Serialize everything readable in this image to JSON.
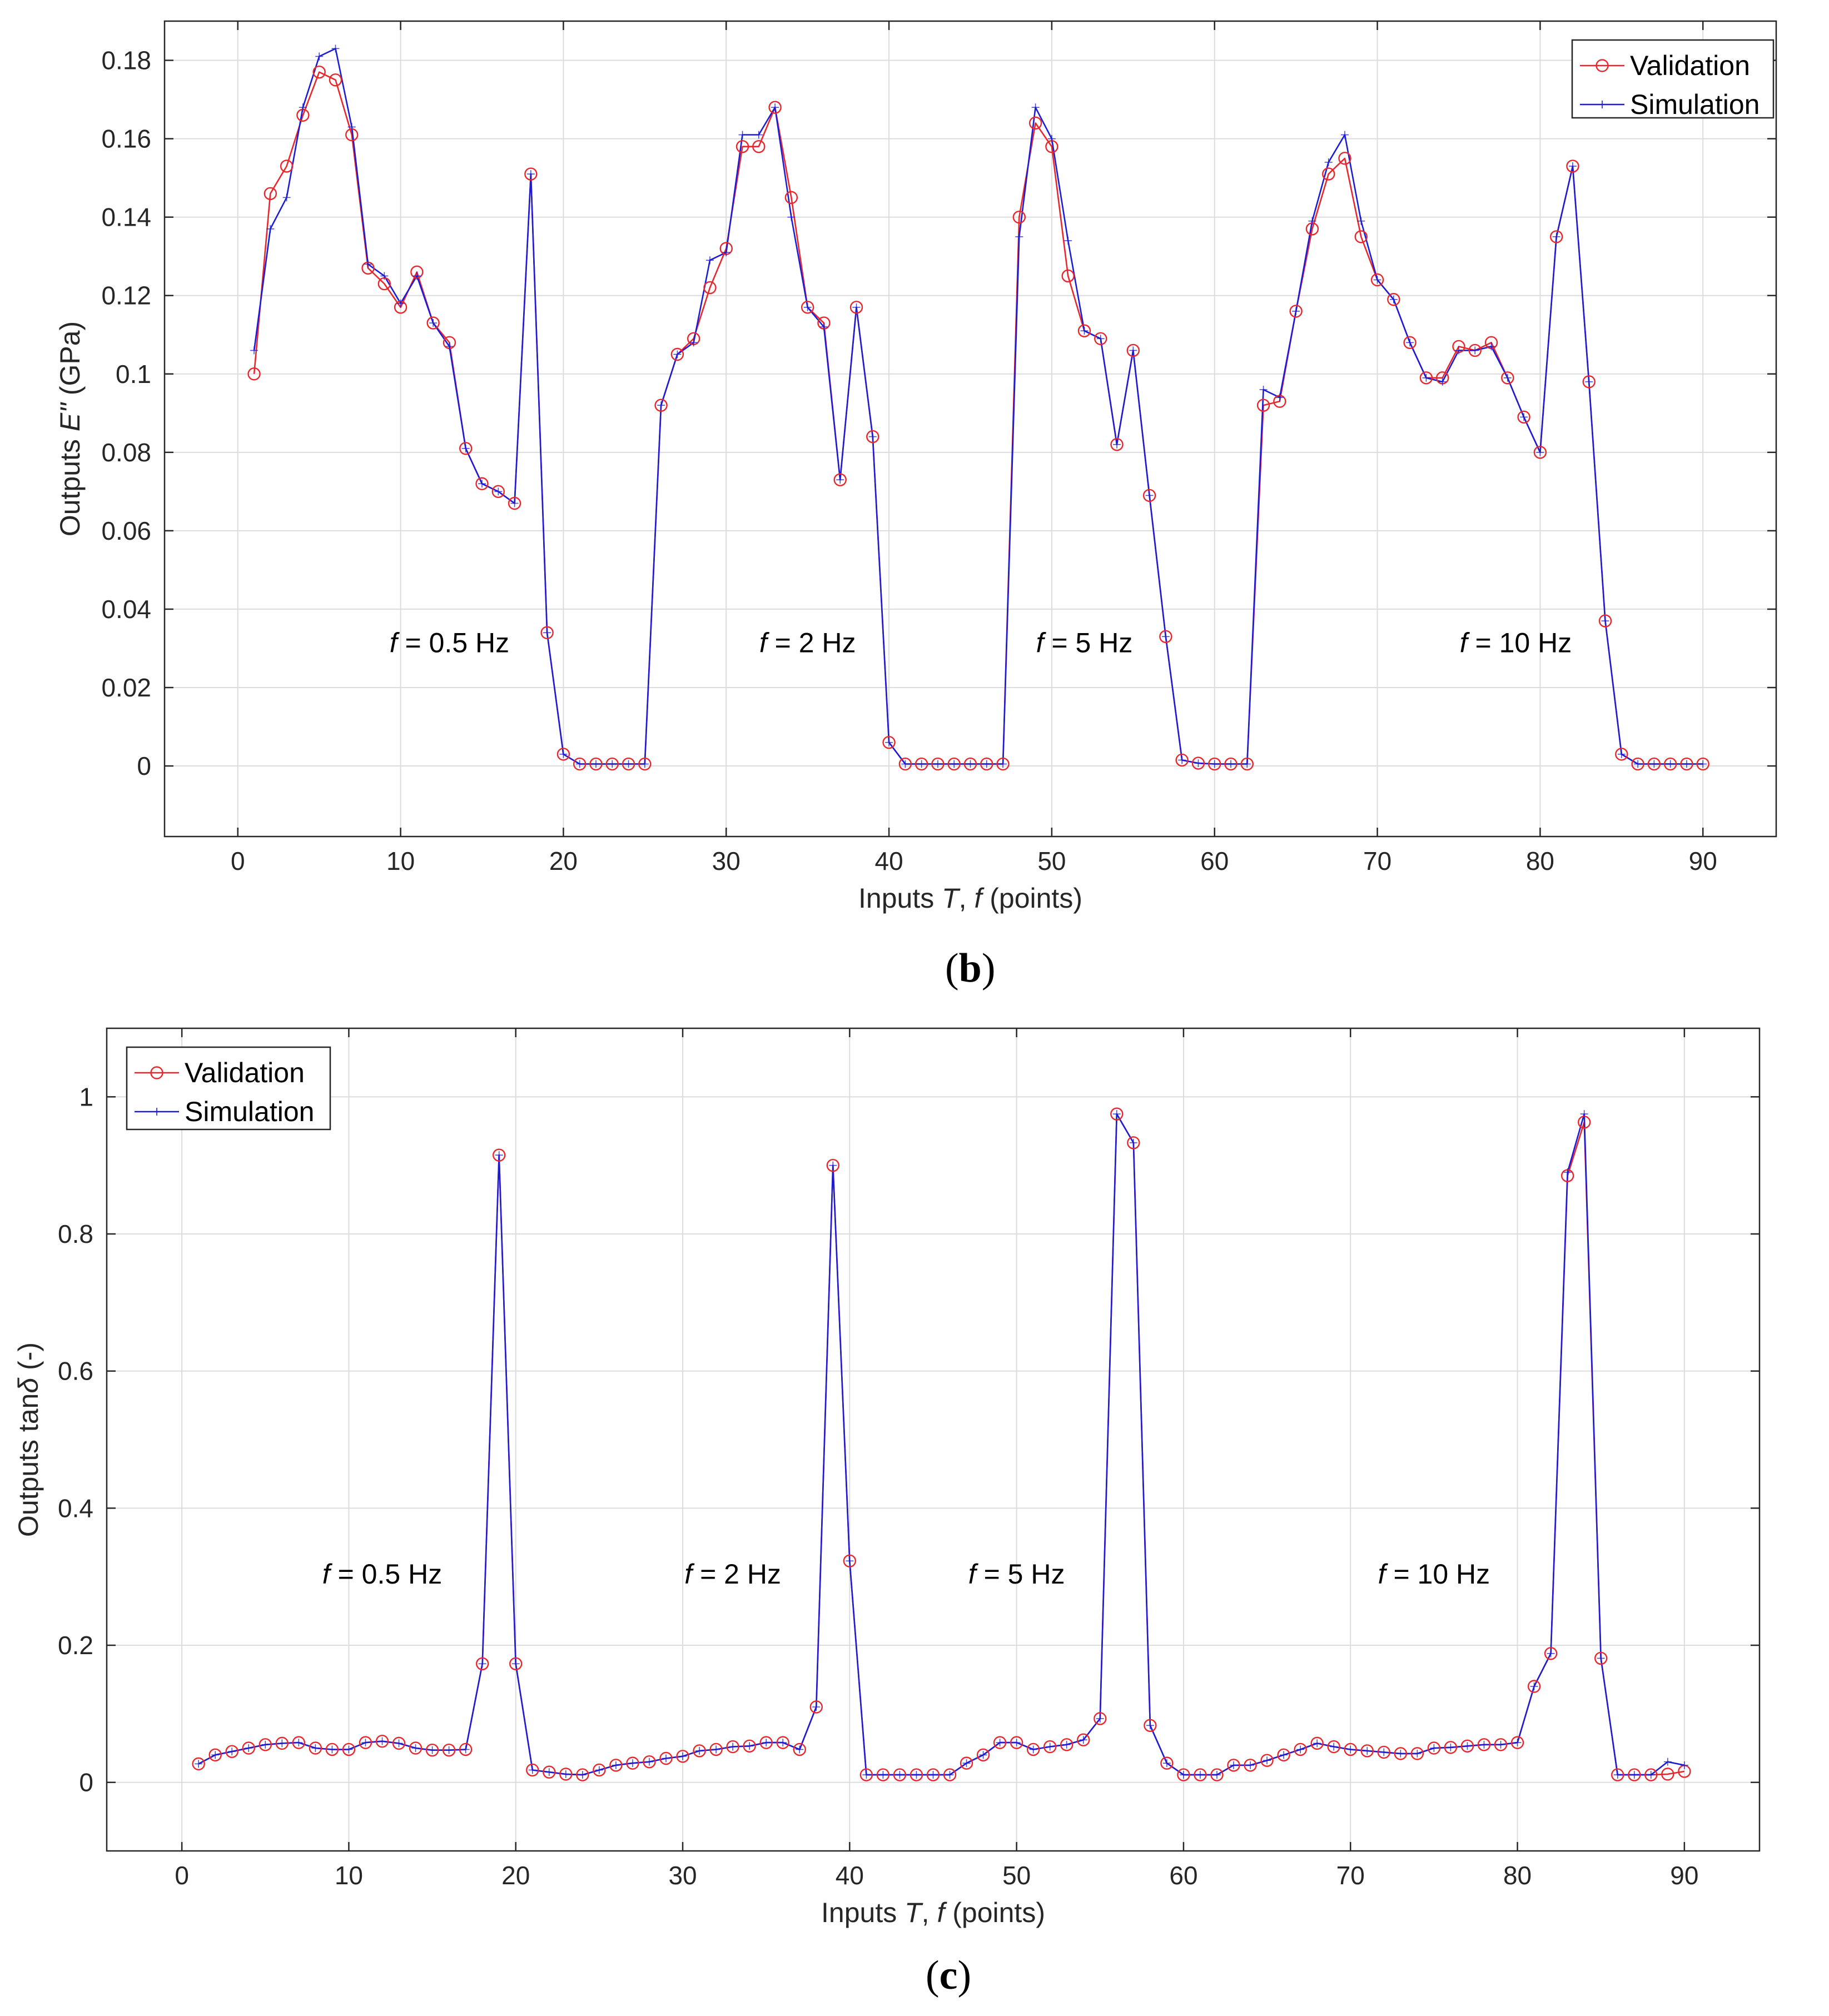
{
  "colors": {
    "validation": "#e8262b",
    "simulation": "#1c1cd6",
    "grid": "#dcdcdc",
    "axis": "#262626"
  },
  "chart_data": [
    {
      "type": "line",
      "panel_label": "b",
      "xlabel_parts": [
        "Inputs ",
        "T",
        ", ",
        "f",
        " (points)"
      ],
      "ylabel_parts": [
        "Outputs ",
        "E\"",
        " (GPa)"
      ],
      "xlim": [
        -4.5,
        94.5
      ],
      "ylim": [
        -0.018,
        0.19
      ],
      "xticks": [
        0,
        10,
        20,
        30,
        40,
        50,
        60,
        70,
        80,
        90
      ],
      "xtick_labels": [
        "0",
        "10",
        "20",
        "30",
        "40",
        "50",
        "60",
        "70",
        "80",
        "90"
      ],
      "yticks": [
        0,
        0.02,
        0.04,
        0.06,
        0.08,
        0.1,
        0.12,
        0.14,
        0.16,
        0.18
      ],
      "ytick_labels": [
        "0",
        "0.02",
        "0.04",
        "0.06",
        "0.08",
        "0.1",
        "0.12",
        "0.14",
        "0.16",
        "0.18"
      ],
      "grid": true,
      "legend_position": "top-right",
      "legend": [
        "Validation",
        "Simulation"
      ],
      "annotations": [
        {
          "italic": "f",
          "text": " = 0.5 Hz",
          "x": 13,
          "y": 0.029
        },
        {
          "italic": "f",
          "text": " = 2 Hz",
          "x": 35,
          "y": 0.029
        },
        {
          "italic": "f",
          "text": " = 5 Hz",
          "x": 52,
          "y": 0.029
        },
        {
          "italic": "f",
          "text": " = 10 Hz",
          "x": 78.5,
          "y": 0.029
        }
      ],
      "series": [
        {
          "name": "Validation",
          "marker": "circle",
          "values": [
            0.1,
            0.146,
            0.153,
            0.166,
            0.177,
            0.175,
            0.161,
            0.127,
            0.123,
            0.117,
            0.126,
            0.113,
            0.108,
            0.081,
            0.072,
            0.07,
            0.067,
            0.151,
            0.034,
            0.003,
            0.0005,
            0.0005,
            0.0005,
            0.0005,
            0.0005,
            0.092,
            0.105,
            0.109,
            0.122,
            0.132,
            0.158,
            0.158,
            0.168,
            0.145,
            0.117,
            0.113,
            0.073,
            0.117,
            0.084,
            0.006,
            0.0005,
            0.0005,
            0.0005,
            0.0005,
            0.0005,
            0.0005,
            0.0005,
            0.14,
            0.164,
            0.158,
            0.125,
            0.111,
            0.109,
            0.082,
            0.106,
            0.069,
            0.033,
            0.0015,
            0.0007,
            0.0005,
            0.0005,
            0.0005,
            0.092,
            0.093,
            0.116,
            0.137,
            0.151,
            0.155,
            0.135,
            0.124,
            0.119,
            0.108,
            0.099,
            0.099,
            0.107,
            0.106,
            0.108,
            0.099,
            0.089,
            0.08,
            0.135,
            0.153,
            0.098,
            0.037,
            0.003,
            0.0005,
            0.0005,
            0.0005,
            0.0005,
            0.0005
          ]
        },
        {
          "name": "Simulation",
          "marker": "plus",
          "values": [
            0.106,
            0.137,
            0.145,
            0.168,
            0.181,
            0.183,
            0.163,
            0.128,
            0.125,
            0.118,
            0.125,
            0.113,
            0.107,
            0.081,
            0.072,
            0.07,
            0.067,
            0.151,
            0.034,
            0.003,
            0.0005,
            0.0005,
            0.0005,
            0.0005,
            0.0005,
            0.092,
            0.105,
            0.108,
            0.129,
            0.131,
            0.161,
            0.161,
            0.168,
            0.14,
            0.117,
            0.112,
            0.073,
            0.117,
            0.084,
            0.006,
            0.0005,
            0.0005,
            0.0005,
            0.0005,
            0.0005,
            0.0005,
            0.0005,
            0.135,
            0.168,
            0.16,
            0.134,
            0.111,
            0.109,
            0.082,
            0.106,
            0.069,
            0.033,
            0.0015,
            0.0007,
            0.0005,
            0.0005,
            0.0005,
            0.096,
            0.094,
            0.116,
            0.139,
            0.154,
            0.161,
            0.139,
            0.124,
            0.119,
            0.108,
            0.099,
            0.098,
            0.106,
            0.106,
            0.107,
            0.099,
            0.089,
            0.08,
            0.135,
            0.153,
            0.098,
            0.037,
            0.003,
            0.0005,
            0.0005,
            0.0005,
            0.0005,
            0.0005
          ]
        }
      ]
    },
    {
      "type": "line",
      "panel_label": "c",
      "xlabel_parts": [
        "Inputs ",
        "T",
        ", ",
        "f",
        " (points)"
      ],
      "ylabel_parts": [
        "Outputs tan",
        "δ",
        " (-)"
      ],
      "xlim": [
        -4.5,
        94.5
      ],
      "ylim": [
        -0.1,
        1.1
      ],
      "xticks": [
        0,
        10,
        20,
        30,
        40,
        50,
        60,
        70,
        80,
        90
      ],
      "xtick_labels": [
        "0",
        "10",
        "20",
        "30",
        "40",
        "50",
        "60",
        "70",
        "80",
        "90"
      ],
      "yticks": [
        0,
        0.2,
        0.4,
        0.6,
        0.8,
        1
      ],
      "ytick_labels": [
        "0",
        "0.2",
        "0.4",
        "0.6",
        "0.8",
        "1"
      ],
      "grid": true,
      "legend_position": "top-left",
      "legend": [
        "Validation",
        "Simulation"
      ],
      "annotations": [
        {
          "italic": "f",
          "text": " = 0.5 Hz",
          "x": 12,
          "y": 0.29
        },
        {
          "italic": "f",
          "text": " = 2 Hz",
          "x": 33,
          "y": 0.29
        },
        {
          "italic": "f",
          "text": " = 5 Hz",
          "x": 50,
          "y": 0.29
        },
        {
          "italic": "f",
          "text": " = 10 Hz",
          "x": 75,
          "y": 0.29
        }
      ],
      "series": [
        {
          "name": "Validation",
          "marker": "circle",
          "values": [
            0.027,
            0.04,
            0.045,
            0.05,
            0.055,
            0.057,
            0.058,
            0.05,
            0.048,
            0.048,
            0.058,
            0.06,
            0.057,
            0.05,
            0.047,
            0.047,
            0.048,
            0.173,
            0.915,
            0.173,
            0.018,
            0.015,
            0.012,
            0.011,
            0.018,
            0.025,
            0.028,
            0.03,
            0.035,
            0.038,
            0.046,
            0.048,
            0.052,
            0.053,
            0.058,
            0.058,
            0.048,
            0.11,
            0.9,
            0.323,
            0.011,
            0.011,
            0.011,
            0.011,
            0.011,
            0.011,
            0.028,
            0.04,
            0.058,
            0.058,
            0.048,
            0.052,
            0.055,
            0.062,
            0.093,
            0.975,
            0.933,
            0.083,
            0.028,
            0.011,
            0.011,
            0.011,
            0.025,
            0.025,
            0.032,
            0.04,
            0.048,
            0.057,
            0.052,
            0.048,
            0.046,
            0.044,
            0.042,
            0.042,
            0.05,
            0.051,
            0.053,
            0.055,
            0.055,
            0.058,
            0.14,
            0.188,
            0.885,
            0.963,
            0.181,
            0.011,
            0.011,
            0.011,
            0.012,
            0.016
          ]
        },
        {
          "name": "Simulation",
          "marker": "plus",
          "values": [
            0.027,
            0.04,
            0.045,
            0.05,
            0.055,
            0.057,
            0.058,
            0.05,
            0.048,
            0.048,
            0.058,
            0.06,
            0.057,
            0.05,
            0.047,
            0.047,
            0.048,
            0.173,
            0.915,
            0.173,
            0.018,
            0.015,
            0.012,
            0.011,
            0.018,
            0.025,
            0.028,
            0.03,
            0.035,
            0.038,
            0.046,
            0.048,
            0.052,
            0.053,
            0.058,
            0.058,
            0.048,
            0.11,
            0.9,
            0.323,
            0.011,
            0.011,
            0.011,
            0.011,
            0.011,
            0.011,
            0.028,
            0.04,
            0.058,
            0.058,
            0.048,
            0.052,
            0.055,
            0.062,
            0.093,
            0.975,
            0.933,
            0.083,
            0.028,
            0.011,
            0.011,
            0.011,
            0.025,
            0.025,
            0.032,
            0.04,
            0.048,
            0.057,
            0.052,
            0.048,
            0.046,
            0.044,
            0.042,
            0.042,
            0.05,
            0.051,
            0.053,
            0.055,
            0.055,
            0.058,
            0.14,
            0.188,
            0.89,
            0.975,
            0.181,
            0.011,
            0.011,
            0.011,
            0.03,
            0.025
          ]
        }
      ]
    }
  ]
}
